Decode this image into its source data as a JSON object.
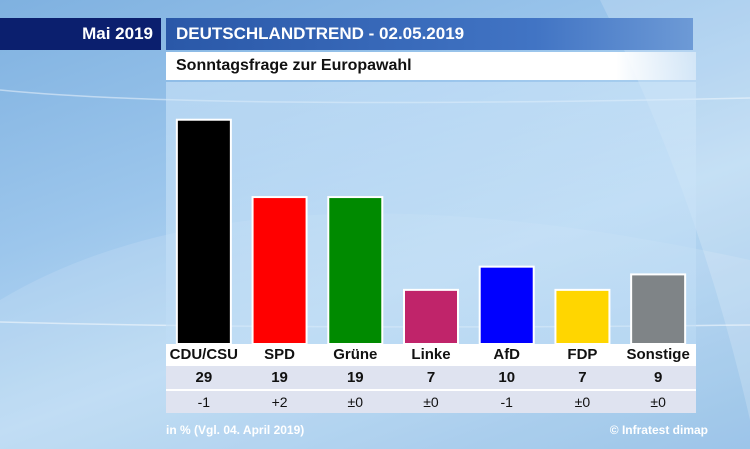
{
  "header": {
    "month_label": "Mai 2019",
    "title": "DEUTSCHLANDTREND - 02.05.2019",
    "subtitle": "Sonntagsfrage zur Europawahl"
  },
  "footer": {
    "note": "in % (Vgl. 04. April 2019)",
    "source": "© Infratest dimap"
  },
  "chart_data": {
    "type": "bar",
    "title": "Sonntagsfrage zur Europawahl",
    "categories": [
      "CDU/CSU",
      "SPD",
      "Grüne",
      "Linke",
      "AfD",
      "FDP",
      "Sonstige"
    ],
    "values": [
      29,
      19,
      19,
      7,
      10,
      7,
      9
    ],
    "value_labels": [
      "29",
      "19",
      "19",
      "7",
      "10",
      "7",
      "9"
    ],
    "changes": [
      "-1",
      "+2",
      "±0",
      "±0",
      "-1",
      "±0",
      "±0"
    ],
    "colors": [
      "#000000",
      "#ff0000",
      "#008a00",
      "#c0246a",
      "#0000ff",
      "#ffd600",
      "#7f8487"
    ],
    "xlabel": "",
    "ylabel": "",
    "ylim": [
      0,
      30
    ],
    "grid": false,
    "legend": "none"
  }
}
